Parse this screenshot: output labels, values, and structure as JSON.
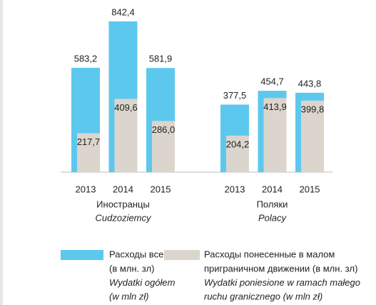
{
  "chart_data": {
    "type": "bar",
    "categories": [
      "2013",
      "2014",
      "2015",
      "2013",
      "2014",
      "2015"
    ],
    "groups": [
      {
        "name": "Иностранцы",
        "name_pl": "Cudzoziemcy"
      },
      {
        "name": "Поляки",
        "name_pl": "Polacy"
      }
    ],
    "series": [
      {
        "name": "Расходы всего",
        "name_lines": [
          "(в млн. зл)",
          "Wydatki ogółem",
          "(w mln zł)"
        ],
        "color": "#5cc8ee",
        "values": [
          583.2,
          842.4,
          581.9,
          377.5,
          454.7,
          443.8
        ],
        "value_labels": [
          "583,2",
          "842,4",
          "581,9",
          "377,5",
          "454,7",
          "443,8"
        ]
      },
      {
        "name": "Расходы понесенные в малом",
        "name_lines": [
          "приграничном движении (в млн. зл)",
          "Wydatki poniesione w ramach małego",
          "ruchu granicznego (w mln zł)"
        ],
        "color": "#dbd5cd",
        "values": [
          217.7,
          409.6,
          286.0,
          204.2,
          413.9,
          399.8
        ],
        "value_labels": [
          "217,7",
          "409,6",
          "286,0",
          "204,2",
          "413,9",
          "399,8"
        ]
      }
    ]
  }
}
